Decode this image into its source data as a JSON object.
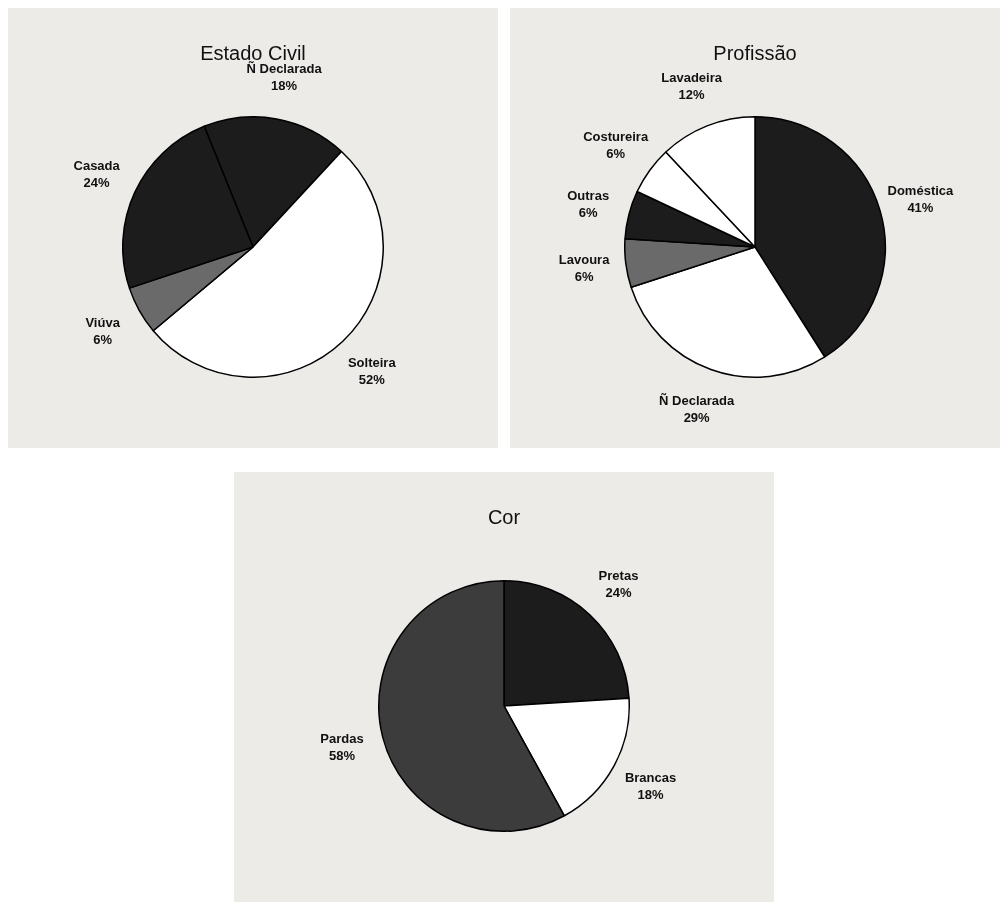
{
  "chart_data": [
    {
      "type": "pie",
      "title": "Estado Civil",
      "categories": [
        "Ñ Declarada",
        "Solteira",
        "Viúva",
        "Casada"
      ],
      "values": [
        18,
        52,
        6,
        24
      ],
      "value_labels": [
        "18%",
        "52%",
        "6%",
        "24%"
      ],
      "colors": [
        "#1c1c1c",
        "#ffffff",
        "#6a6a6a",
        "#1c1c1c"
      ]
    },
    {
      "type": "pie",
      "title": "Profissão",
      "categories": [
        "Doméstica",
        "Ñ Declarada",
        "Lavoura",
        "Outras",
        "Costureira",
        "Lavadeira"
      ],
      "values": [
        41,
        29,
        6,
        6,
        6,
        12
      ],
      "value_labels": [
        "41%",
        "29%",
        "6%",
        "6%",
        "6%",
        "12%"
      ],
      "colors": [
        "#1c1c1c",
        "#ffffff",
        "#6a6a6a",
        "#1c1c1c",
        "#ffffff",
        "#ffffff"
      ]
    },
    {
      "type": "pie",
      "title": "Cor",
      "categories": [
        "Pretas",
        "Brancas",
        "Pardas"
      ],
      "values": [
        24,
        18,
        58
      ],
      "value_labels": [
        "24%",
        "18%",
        "58%"
      ],
      "colors": [
        "#1c1c1c",
        "#ffffff",
        "#3c3c3c"
      ]
    }
  ]
}
